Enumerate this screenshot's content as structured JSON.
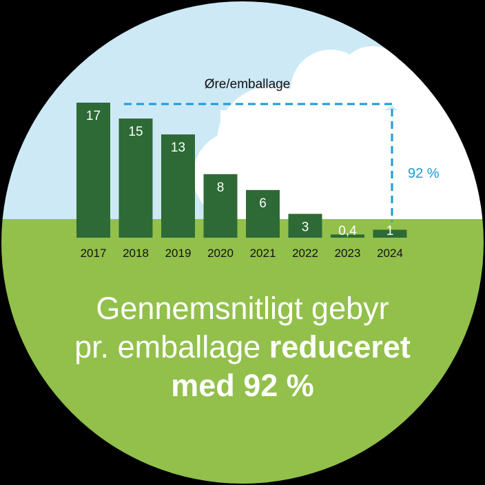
{
  "chart_data": {
    "type": "bar",
    "title": "Øre/emballage",
    "categories": [
      "2017",
      "2018",
      "2019",
      "2020",
      "2021",
      "2022",
      "2023",
      "2024"
    ],
    "values": [
      17,
      15,
      13,
      8,
      6,
      3,
      0.4,
      1
    ],
    "value_labels": [
      "17",
      "15",
      "13",
      "8",
      "6",
      "3",
      "0,4",
      "1"
    ],
    "ylim": [
      0,
      17
    ],
    "annotation": "92 %",
    "bar_color": "#2d6a35",
    "annotation_color": "#1a9ad6"
  },
  "headline": {
    "line1": "Gennemsnitligt gebyr",
    "line2_regular": "pr. emballage ",
    "line2_bold": "reduceret",
    "line3_bold": "med 92 %"
  },
  "colors": {
    "sky": "#cde9f6",
    "grass": "#92c04b",
    "cloud": "#ffffff",
    "background": "#000000"
  }
}
